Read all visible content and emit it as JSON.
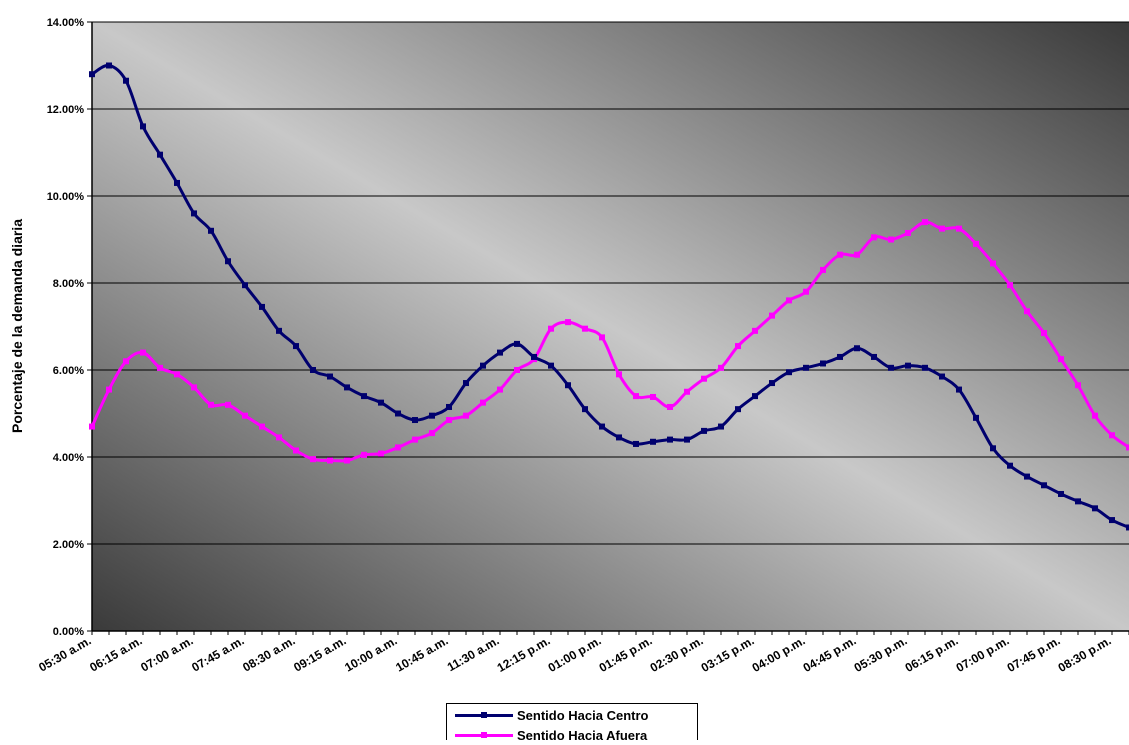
{
  "chart_data": {
    "type": "line",
    "title": "",
    "xlabel": "",
    "ylabel": "Porcentaje de la demanda diaria",
    "ylim": [
      0,
      14
    ],
    "y_ticks": [
      "0.00%",
      "2.00%",
      "4.00%",
      "6.00%",
      "8.00%",
      "10.00%",
      "12.00%",
      "14.00%"
    ],
    "x_tick_labels": [
      "05:30 a.m.",
      "06:15 a.m.",
      "07:00 a.m.",
      "07:45 a.m.",
      "08:30 a.m.",
      "09:15 a.m.",
      "10:00 a.m.",
      "10:45 a.m.",
      "11:30 a.m.",
      "12:15 p.m.",
      "01:00 p.m.",
      "01:45 p.m.",
      "02:30 p.m.",
      "03:15 p.m.",
      "04:00 p.m.",
      "04:45 p.m.",
      "05:30 p.m.",
      "06:15 p.m.",
      "07:00 p.m.",
      "07:45 p.m.",
      "08:30 p.m."
    ],
    "x_interval_minutes": 15,
    "x_start": "05:30 a.m.",
    "grid": true,
    "legend_position": "bottom",
    "series": [
      {
        "name": "Sentido Hacia Centro",
        "color": "#00006e",
        "values": [
          12.8,
          13.0,
          12.65,
          11.6,
          10.95,
          10.3,
          9.6,
          9.2,
          8.5,
          7.95,
          7.45,
          6.9,
          6.55,
          6.0,
          5.85,
          5.6,
          5.4,
          5.25,
          5.0,
          4.85,
          4.95,
          5.15,
          5.7,
          6.1,
          6.4,
          6.6,
          6.3,
          6.1,
          5.65,
          5.1,
          4.7,
          4.45,
          4.3,
          4.35,
          4.4,
          4.4,
          4.6,
          4.7,
          5.1,
          5.4,
          5.7,
          5.95,
          6.05,
          6.15,
          6.3,
          6.5,
          6.3,
          6.05,
          6.1,
          6.05,
          5.85,
          5.55,
          4.9,
          4.2,
          3.8,
          3.55,
          3.35,
          3.15,
          2.98,
          2.82,
          2.55,
          2.38
        ]
      },
      {
        "name": "Sentido Hacia Afuera",
        "color": "#ff00ff",
        "values": [
          4.7,
          5.55,
          6.2,
          6.4,
          6.05,
          5.9,
          5.6,
          5.2,
          5.2,
          4.95,
          4.7,
          4.45,
          4.15,
          3.95,
          3.92,
          3.92,
          4.05,
          4.08,
          4.22,
          4.4,
          4.55,
          4.85,
          4.95,
          5.25,
          5.55,
          6.0,
          6.25,
          6.95,
          7.1,
          6.95,
          6.75,
          5.9,
          5.4,
          5.38,
          5.15,
          5.5,
          5.8,
          6.05,
          6.55,
          6.9,
          7.25,
          7.6,
          7.8,
          8.3,
          8.65,
          8.65,
          9.05,
          9.0,
          9.15,
          9.4,
          9.25,
          9.25,
          8.9,
          8.45,
          7.95,
          7.35,
          6.85,
          6.25,
          5.65,
          4.95,
          4.5,
          4.22
        ]
      }
    ]
  }
}
